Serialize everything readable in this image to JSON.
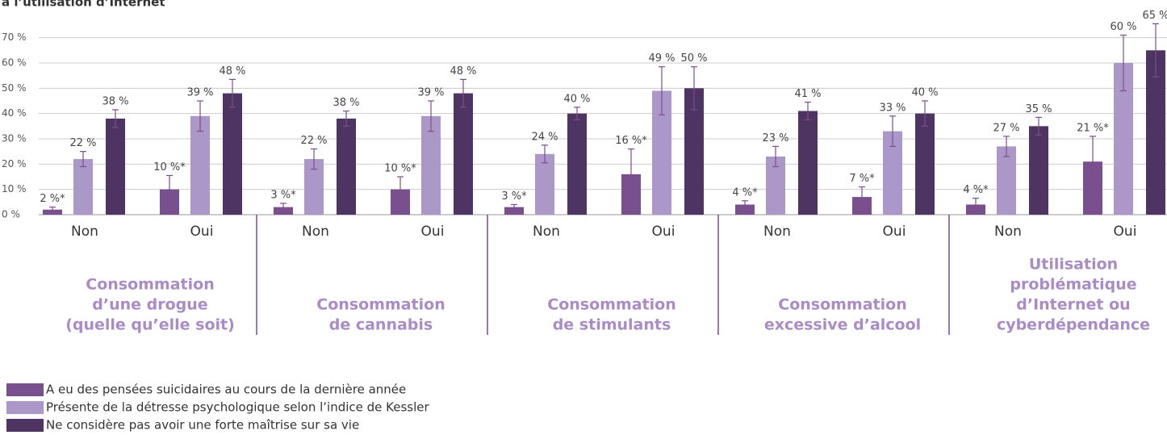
{
  "chart_data": {
    "type": "bar",
    "title": "à l’utilisation d’Internet",
    "categories": [
      "Non",
      "Oui",
      "Non",
      "Oui",
      "Non",
      "Oui",
      "Non",
      "Oui",
      "Non",
      "Oui"
    ],
    "groups": [
      [
        "Consommation",
        "d’une drogue",
        "(quelle qu’elle soit)"
      ],
      [
        "Consommation",
        "de cannabis"
      ],
      [
        "Consommation",
        "de stimulants"
      ],
      [
        "Consommation",
        "excessive d’alcool"
      ],
      [
        "Utilisation",
        "problématique",
        "d’Internet ou",
        "cyberdépendance"
      ]
    ],
    "series": [
      {
        "name": "A eu des pensées suicidaires au cours de la dernière année",
        "color": "#7a4f8d",
        "values": [
          2,
          10,
          3,
          10,
          3,
          16,
          4,
          7,
          4,
          21
        ],
        "errors": [
          1,
          5.5,
          1.5,
          5,
          1,
          10,
          1.5,
          4,
          2.5,
          10
        ],
        "value_labels": [
          "2 %*",
          "10 %*",
          "3 %*",
          "10 %*",
          "3 %*",
          "16 %*",
          "4 %*",
          "7 %*",
          "4 %*",
          "21 %*"
        ]
      },
      {
        "name": "Présente de la détresse psychologique selon l’indice de Kessler",
        "color": "#ab98c8",
        "values": [
          22,
          39,
          22,
          39,
          24,
          49,
          23,
          33,
          27,
          60
        ],
        "errors": [
          3,
          6,
          4,
          6,
          3.5,
          9.5,
          4,
          6,
          4,
          11
        ],
        "value_labels": [
          "22 %",
          "39 %",
          "22 %",
          "39 %",
          "24 %",
          "49 %",
          "23 %",
          "33 %",
          "27 %",
          "60 %"
        ]
      },
      {
        "name": "Ne considère pas avoir une forte maîtrise sur sa vie",
        "color": "#4e3462",
        "values": [
          38,
          48,
          38,
          48,
          40,
          50,
          41,
          40,
          35,
          65
        ],
        "errors": [
          3.5,
          5.5,
          3,
          5.5,
          2.5,
          8.5,
          3.5,
          5,
          3.5,
          10.5
        ],
        "value_labels": [
          "38 %",
          "48 %",
          "38 %",
          "48 %",
          "40 %",
          "50 %",
          "41 %",
          "40 %",
          "35 %",
          "65 %"
        ]
      }
    ],
    "ylim": [
      0,
      75
    ],
    "yticks": [
      {
        "value": 0,
        "label": "0 %"
      },
      {
        "value": 10,
        "label": "10 %"
      },
      {
        "value": 20,
        "label": "20 %"
      },
      {
        "value": 30,
        "label": "30 %"
      },
      {
        "value": 40,
        "label": "40 %"
      },
      {
        "value": 50,
        "label": "50 %"
      },
      {
        "value": 60,
        "label": "60 %"
      },
      {
        "value": 70,
        "label": "70 %"
      }
    ],
    "grid": true
  }
}
